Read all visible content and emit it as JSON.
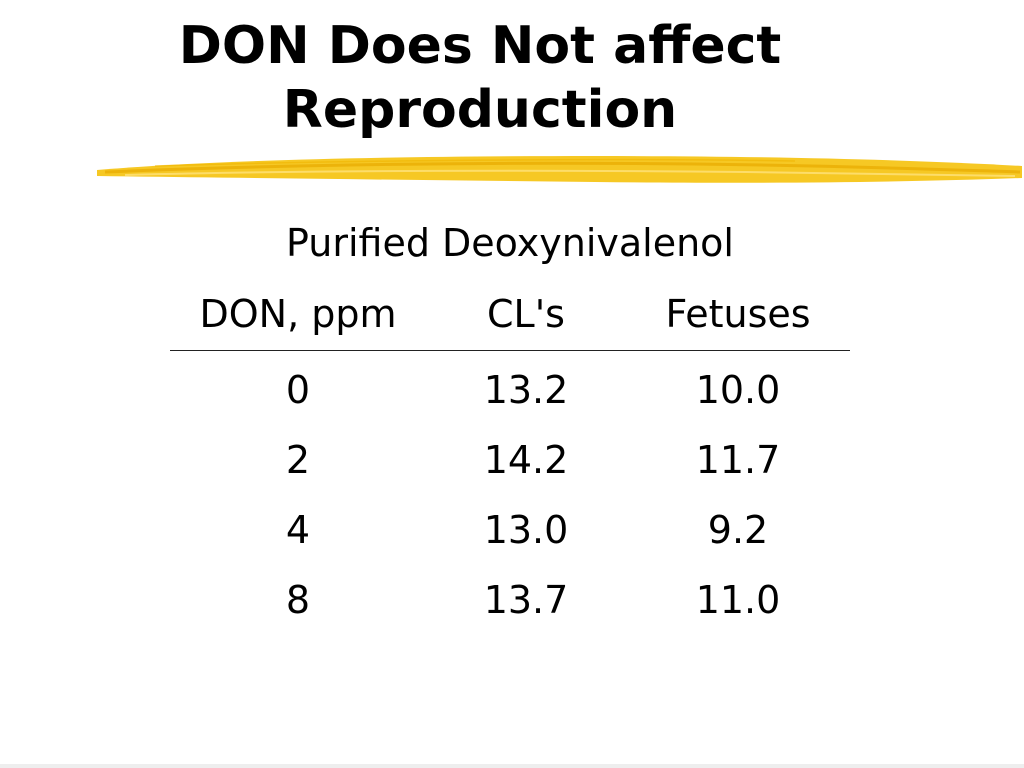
{
  "slide": {
    "title_lines": [
      "DON Does Not affect",
      "Reproduction"
    ],
    "subtitle": "Purified Deoxynivalenol",
    "accent_color": "#F5C518",
    "table": {
      "headers": [
        "DON, ppm",
        "CL's",
        "Fetuses"
      ],
      "rows": [
        [
          "0",
          "13.2",
          "10.0"
        ],
        [
          "2",
          "14.2",
          "11.7"
        ],
        [
          "4",
          "13.0",
          "9.2"
        ],
        [
          "8",
          "13.7",
          "11.0"
        ]
      ]
    }
  }
}
